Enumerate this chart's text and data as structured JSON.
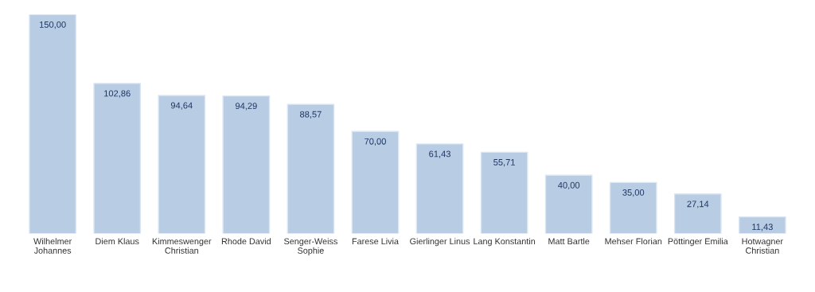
{
  "chart_data": {
    "type": "bar",
    "categories": [
      "Wilhelmer Johannes",
      "Diem Klaus",
      "Kimmeswenger Christian",
      "Rhode David",
      "Senger-Weiss Sophie",
      "Farese Livia",
      "Gierlinger Linus",
      "Lang Konstantin",
      "Matt Bartle",
      "Mehser Florian",
      "Pöttinger Emilia",
      "Hotwagner Christian"
    ],
    "values": [
      150.0,
      102.86,
      94.64,
      94.29,
      88.57,
      70.0,
      61.43,
      55.71,
      40.0,
      35.0,
      27.14,
      11.43
    ],
    "value_labels": [
      "150,00",
      "102,86",
      "94,64",
      "94,29",
      "88,57",
      "70,00",
      "61,43",
      "55,71",
      "40,00",
      "35,00",
      "27,14",
      "11,43"
    ],
    "color": "#b8cce4",
    "grid": false,
    "legend": false
  }
}
